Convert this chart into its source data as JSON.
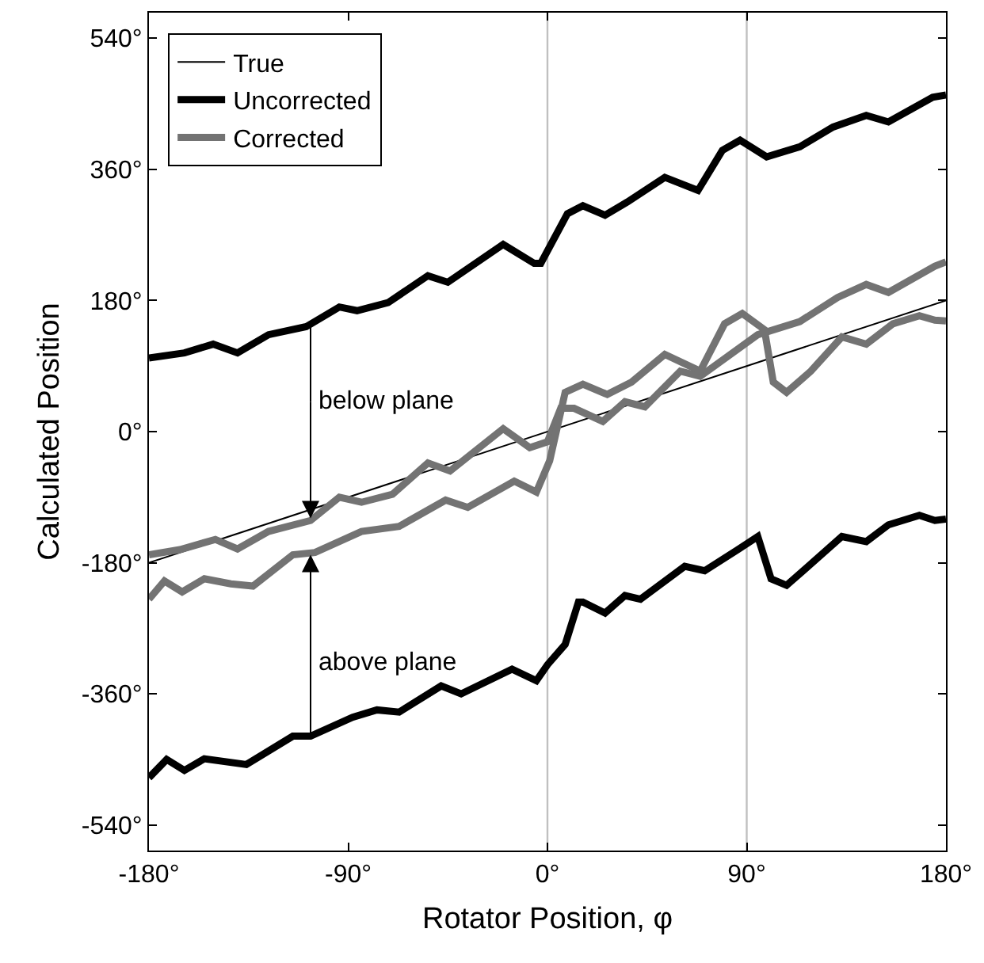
{
  "chart_data": {
    "type": "line",
    "xlabel": "Rotator Position, φ",
    "ylabel": "Calculated Position",
    "xlim": [
      -180,
      180
    ],
    "ylim": [
      -575,
      575
    ],
    "xticks": [
      {
        "value": -180,
        "label": "-180°"
      },
      {
        "value": -90,
        "label": "-90°"
      },
      {
        "value": 0,
        "label": "0°"
      },
      {
        "value": 90,
        "label": "90°"
      },
      {
        "value": 180,
        "label": "180°"
      }
    ],
    "yticks": [
      {
        "value": -540,
        "label": "-540°"
      },
      {
        "value": -360,
        "label": "-360°"
      },
      {
        "value": -180,
        "label": "-180°"
      },
      {
        "value": 0,
        "label": "0°"
      },
      {
        "value": 180,
        "label": "180°"
      },
      {
        "value": 360,
        "label": "360°"
      },
      {
        "value": 540,
        "label": "540°"
      }
    ],
    "grid": false,
    "legend": "top left",
    "marker": "none",
    "line_style": "solid",
    "ref_lines": [
      {
        "axis": "x",
        "value": 0,
        "color": "#c0c0c0"
      },
      {
        "axis": "x",
        "value": 90,
        "color": "#c0c0c0"
      }
    ],
    "annotations": [
      {
        "text": "below plane",
        "x": -107,
        "y": -119
      },
      {
        "text": "above plane",
        "x": -107,
        "y": -169
      }
    ],
    "series": [
      {
        "name": "True",
        "color": "#000000",
        "x": [
          -180,
          180
        ],
        "values": [
          -180,
          180
        ]
      },
      {
        "name": "Uncorrected",
        "color": "#000000",
        "x": [
          -180,
          -164,
          -151,
          -140,
          -126,
          -109,
          -94,
          -86,
          -72,
          -54,
          -45,
          -20,
          -6,
          -3,
          9,
          16,
          26,
          36,
          53,
          68,
          79,
          87,
          99,
          114,
          129,
          144,
          154,
          174,
          180
        ],
        "values": [
          101,
          108,
          120,
          108,
          133,
          144,
          171,
          166,
          177,
          214,
          205,
          257,
          231,
          231,
          299,
          310,
          297,
          315,
          349,
          331,
          386,
          400,
          377,
          391,
          418,
          434,
          425,
          459,
          462
        ]
      },
      {
        "name": "Corrected",
        "color": "#737373",
        "x": [
          -180,
          -166,
          -150,
          -140,
          -126,
          -107,
          -94,
          -84,
          -70,
          -54,
          -44,
          -20,
          -8,
          0,
          6,
          12,
          25,
          35,
          44,
          60,
          69,
          95,
          114,
          131,
          144,
          154,
          175,
          180
        ],
        "values": [
          -169,
          -162,
          -148,
          -161,
          -137,
          -122,
          -90,
          -97,
          -86,
          -43,
          -54,
          4,
          -22,
          -14,
          32,
          32,
          14,
          41,
          34,
          83,
          76,
          133,
          151,
          184,
          202,
          191,
          227,
          233
        ]
      },
      {
        "color": "#000000",
        "x": [
          -180,
          -172,
          -164,
          -155,
          -136,
          -115,
          -107,
          -88,
          -77,
          -67,
          -48,
          -39,
          -16,
          -5,
          0,
          8,
          14,
          16,
          26,
          35,
          42,
          62,
          71,
          86,
          95,
          101,
          108,
          133,
          144,
          154,
          168,
          175,
          180
        ],
        "values": [
          -475,
          -450,
          -465,
          -449,
          -457,
          -418,
          -418,
          -392,
          -382,
          -385,
          -349,
          -360,
          -326,
          -342,
          -320,
          -292,
          -234,
          -234,
          -249,
          -225,
          -230,
          -185,
          -191,
          -162,
          -144,
          -202,
          -211,
          -144,
          -151,
          -128,
          -115,
          -122,
          -120
        ]
      },
      {
        "color": "#737373",
        "x": [
          -180,
          -173,
          -165,
          -155,
          -143,
          -133,
          -115,
          -105,
          -84,
          -67,
          -46,
          -36,
          -15,
          -5,
          1,
          8,
          16,
          27,
          38,
          53,
          69,
          80,
          88,
          98,
          102,
          108,
          119,
          133,
          144,
          156,
          168,
          175,
          180
        ],
        "values": [
          -230,
          -205,
          -220,
          -202,
          -209,
          -212,
          -169,
          -166,
          -137,
          -130,
          -94,
          -104,
          -68,
          -83,
          -40,
          54,
          65,
          51,
          68,
          106,
          83,
          148,
          162,
          140,
          68,
          54,
          83,
          130,
          120,
          148,
          159,
          153,
          152
        ]
      }
    ]
  }
}
